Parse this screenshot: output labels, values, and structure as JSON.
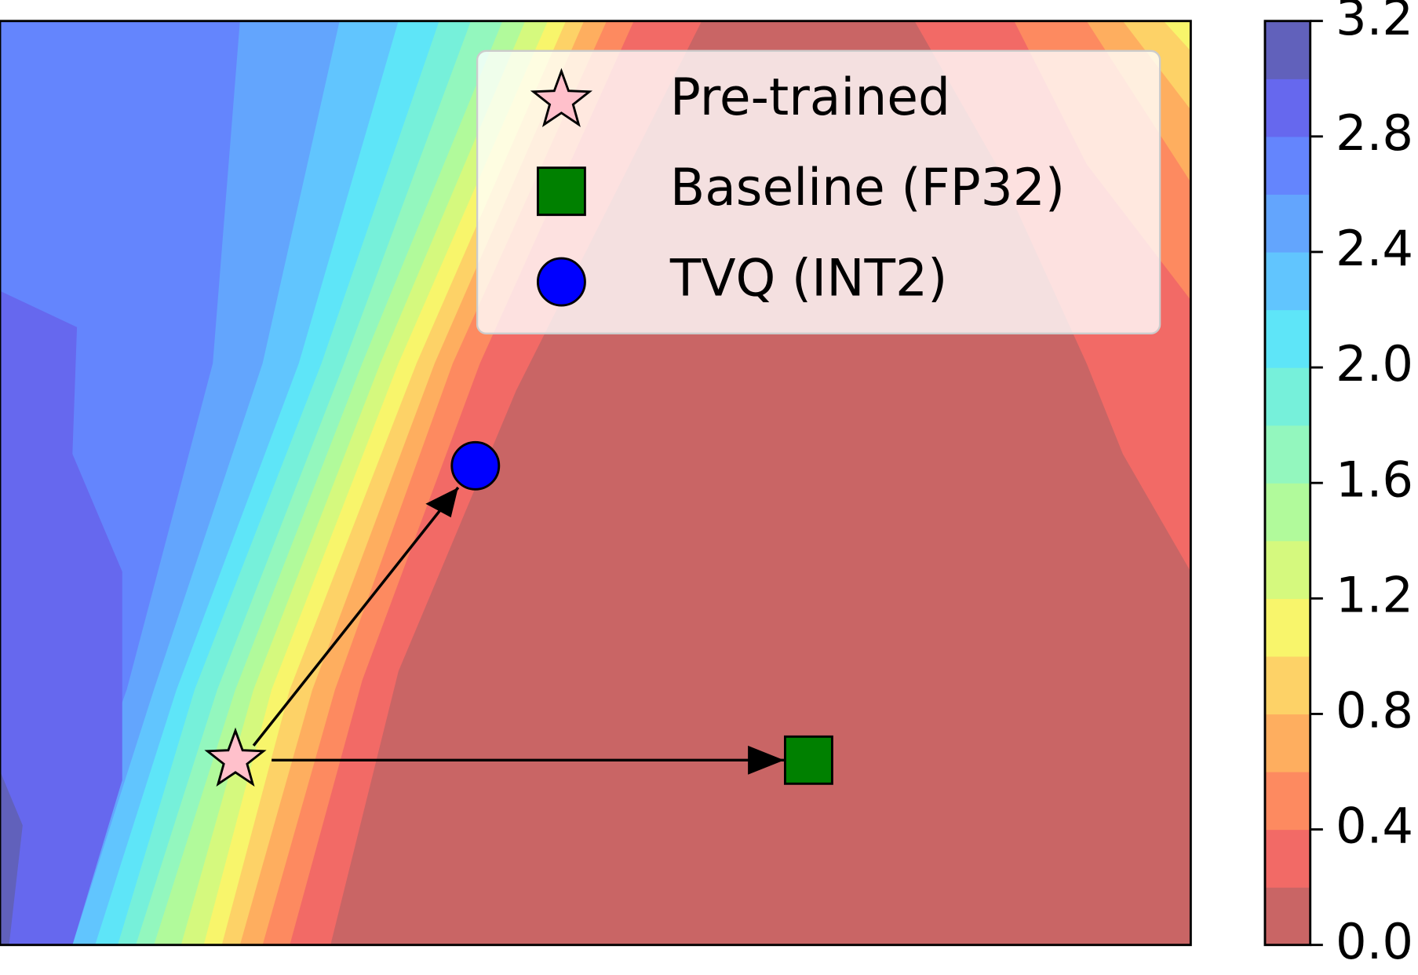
{
  "chart_data": {
    "type": "contour",
    "levels": [
      0,
      0.2,
      0.4,
      0.6,
      0.8,
      1.0,
      1.2,
      1.4,
      1.6,
      1.8,
      2.0,
      2.2,
      2.4,
      2.6,
      2.8,
      3.0,
      3.2
    ],
    "colors": [
      "#c96565",
      "#f26a66",
      "#fd8a60",
      "#feae5f",
      "#fdd267",
      "#f8f56b",
      "#d5f97e",
      "#b1fa9b",
      "#93f7be",
      "#76f0da",
      "#5ee5f8",
      "#61c5fe",
      "#63a5fd",
      "#6485fd",
      "#6668ee",
      "#6161bb"
    ],
    "cbar_ticks": [
      {
        "value": 0.0,
        "label": "0.0"
      },
      {
        "value": 0.4,
        "label": "0.4"
      },
      {
        "value": 0.8,
        "label": "0.8"
      },
      {
        "value": 1.2,
        "label": "1.2"
      },
      {
        "value": 1.6,
        "label": "1.6"
      },
      {
        "value": 2.0,
        "label": "2.0"
      },
      {
        "value": 2.4,
        "label": "2.4"
      },
      {
        "value": 2.8,
        "label": "2.8"
      },
      {
        "value": 3.2,
        "label": "3.2"
      }
    ],
    "points": [
      {
        "name": "Pre-trained",
        "marker": "star",
        "color": "#ffc0cb"
      },
      {
        "name": "Baseline (FP32)",
        "marker": "square",
        "color": "#008000"
      },
      {
        "name": "TVQ (INT2)",
        "marker": "circle",
        "color": "#0000ff"
      }
    ]
  }
}
